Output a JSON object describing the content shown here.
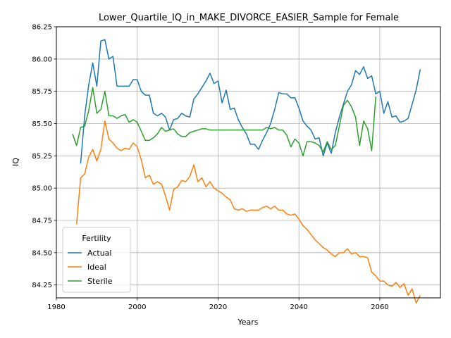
{
  "chart_data": {
    "type": "line",
    "title": "Lower_Quartile_IQ_in_MAKE_DIVORCE_EASIER_Sample for Female",
    "xlabel": "Years",
    "ylabel": "IQ",
    "xlim": [
      1980,
      2075
    ],
    "ylim": [
      84.15,
      86.25
    ],
    "xticks": [
      1980,
      2000,
      2020,
      2040,
      2060
    ],
    "yticks": [
      84.25,
      84.5,
      84.75,
      85.0,
      85.25,
      85.5,
      85.75,
      86.0,
      86.25
    ],
    "ytick_labels": [
      "84.25",
      "84.50",
      "84.75",
      "85.00",
      "85.25",
      "85.50",
      "85.75",
      "86.00",
      "86.25"
    ],
    "grid": true,
    "legend": {
      "title": "Fertility",
      "position": "lower-left"
    },
    "series": [
      {
        "name": "Actual",
        "color": "#1f77b4",
        "x": [
          1986,
          1987,
          1988,
          1989,
          1990,
          1991,
          1992,
          1993,
          1994,
          1995,
          1996,
          1997,
          1998,
          1999,
          2000,
          2001,
          2002,
          2003,
          2004,
          2005,
          2006,
          2007,
          2008,
          2009,
          2010,
          2011,
          2012,
          2013,
          2014,
          2015,
          2016,
          2017,
          2018,
          2019,
          2020,
          2021,
          2022,
          2023,
          2024,
          2025,
          2026,
          2027,
          2028,
          2029,
          2030,
          2031,
          2032,
          2033,
          2034,
          2035,
          2036,
          2037,
          2038,
          2039,
          2040,
          2041,
          2042,
          2043,
          2044,
          2045,
          2046,
          2047,
          2048,
          2049,
          2050,
          2051,
          2052,
          2053,
          2054,
          2055,
          2056,
          2057,
          2058,
          2059,
          2060,
          2061,
          2062,
          2063,
          2064,
          2065,
          2066,
          2067,
          2068,
          2069,
          2070
        ],
        "values": [
          85.19,
          85.56,
          85.8,
          85.97,
          85.79,
          86.14,
          86.15,
          86.0,
          86.02,
          85.79,
          85.79,
          85.79,
          85.79,
          85.84,
          85.84,
          85.75,
          85.72,
          85.72,
          85.58,
          85.56,
          85.58,
          85.55,
          85.45,
          85.53,
          85.54,
          85.58,
          85.56,
          85.55,
          85.69,
          85.73,
          85.78,
          85.83,
          85.89,
          85.81,
          85.83,
          85.66,
          85.76,
          85.61,
          85.62,
          85.53,
          85.47,
          85.42,
          85.34,
          85.34,
          85.3,
          85.37,
          85.43,
          85.5,
          85.61,
          85.74,
          85.73,
          85.73,
          85.7,
          85.7,
          85.62,
          85.52,
          85.48,
          85.45,
          85.38,
          85.39,
          85.25,
          85.35,
          85.27,
          85.43,
          85.55,
          85.65,
          85.75,
          85.8,
          85.91,
          85.88,
          85.94,
          85.85,
          85.87,
          85.73,
          85.75,
          85.58,
          85.67,
          85.55,
          85.56,
          85.51,
          85.52,
          85.54,
          85.65,
          85.76,
          85.92
        ]
      },
      {
        "name": "Ideal",
        "color": "#ff7f0e",
        "x": [
          1985,
          1986,
          1987,
          1988,
          1989,
          1990,
          1991,
          1992,
          1993,
          1994,
          1995,
          1996,
          1997,
          1998,
          1999,
          2000,
          2001,
          2002,
          2003,
          2004,
          2005,
          2006,
          2007,
          2008,
          2009,
          2010,
          2011,
          2012,
          2013,
          2014,
          2015,
          2016,
          2017,
          2018,
          2019,
          2020,
          2021,
          2022,
          2023,
          2024,
          2025,
          2026,
          2027,
          2028,
          2029,
          2030,
          2031,
          2032,
          2033,
          2034,
          2035,
          2036,
          2037,
          2038,
          2039,
          2040,
          2041,
          2042,
          2043,
          2044,
          2045,
          2046,
          2047,
          2048,
          2049,
          2050,
          2051,
          2052,
          2053,
          2054,
          2055,
          2056,
          2057,
          2058,
          2059,
          2060,
          2061,
          2062,
          2063,
          2064,
          2065,
          2066,
          2067,
          2068,
          2069,
          2070
        ],
        "values": [
          84.72,
          85.08,
          85.11,
          85.24,
          85.3,
          85.21,
          85.3,
          85.52,
          85.38,
          85.35,
          85.31,
          85.29,
          85.31,
          85.3,
          85.35,
          85.32,
          85.22,
          85.08,
          85.1,
          85.03,
          85.05,
          85.03,
          84.94,
          84.83,
          84.99,
          85.01,
          85.06,
          85.05,
          85.09,
          85.18,
          85.05,
          85.08,
          85.01,
          85.05,
          85.0,
          84.98,
          84.96,
          84.93,
          84.91,
          84.84,
          84.83,
          84.84,
          84.82,
          84.83,
          84.83,
          84.83,
          84.85,
          84.86,
          84.84,
          84.86,
          84.83,
          84.83,
          84.8,
          84.79,
          84.8,
          84.76,
          84.71,
          84.68,
          84.64,
          84.6,
          84.57,
          84.54,
          84.52,
          84.49,
          84.47,
          84.5,
          84.5,
          84.53,
          84.49,
          84.5,
          84.47,
          84.47,
          84.46,
          84.35,
          84.32,
          84.28,
          84.28,
          84.25,
          84.24,
          84.27,
          84.23,
          84.26,
          84.17,
          84.22,
          84.11,
          84.17
        ]
      },
      {
        "name": "Sterile",
        "color": "#2ca02c",
        "x": [
          1984,
          1985,
          1986,
          1987,
          1988,
          1989,
          1990,
          1991,
          1992,
          1993,
          1994,
          1995,
          1996,
          1997,
          1998,
          1999,
          2000,
          2001,
          2002,
          2003,
          2004,
          2005,
          2006,
          2007,
          2008,
          2009,
          2010,
          2011,
          2012,
          2013,
          2014,
          2015,
          2016,
          2017,
          2018,
          2019,
          2020,
          2021,
          2022,
          2023,
          2024,
          2025,
          2026,
          2027,
          2028,
          2029,
          2030,
          2031,
          2032,
          2033,
          2034,
          2035,
          2036,
          2037,
          2038,
          2039,
          2040,
          2041,
          2042,
          2043,
          2044,
          2045,
          2046,
          2047,
          2048,
          2049,
          2050,
          2051,
          2052,
          2053,
          2054,
          2055,
          2056,
          2057,
          2058,
          2059
        ],
        "values": [
          85.42,
          85.33,
          85.47,
          85.48,
          85.6,
          85.78,
          85.58,
          85.61,
          85.75,
          85.56,
          85.56,
          85.54,
          85.56,
          85.57,
          85.51,
          85.53,
          85.51,
          85.44,
          85.37,
          85.37,
          85.39,
          85.42,
          85.47,
          85.44,
          85.45,
          85.46,
          85.42,
          85.4,
          85.4,
          85.43,
          85.44,
          85.45,
          85.46,
          85.46,
          85.45,
          85.45,
          85.45,
          85.45,
          85.45,
          85.45,
          85.45,
          85.45,
          85.45,
          85.45,
          85.45,
          85.45,
          85.45,
          85.45,
          85.47,
          85.46,
          85.47,
          85.45,
          85.45,
          85.41,
          85.32,
          85.38,
          85.35,
          85.25,
          85.36,
          85.36,
          85.35,
          85.33,
          85.28,
          85.36,
          85.3,
          85.33,
          85.48,
          85.64,
          85.68,
          85.63,
          85.55,
          85.33,
          85.52,
          85.46,
          85.29,
          85.71
        ]
      }
    ]
  }
}
